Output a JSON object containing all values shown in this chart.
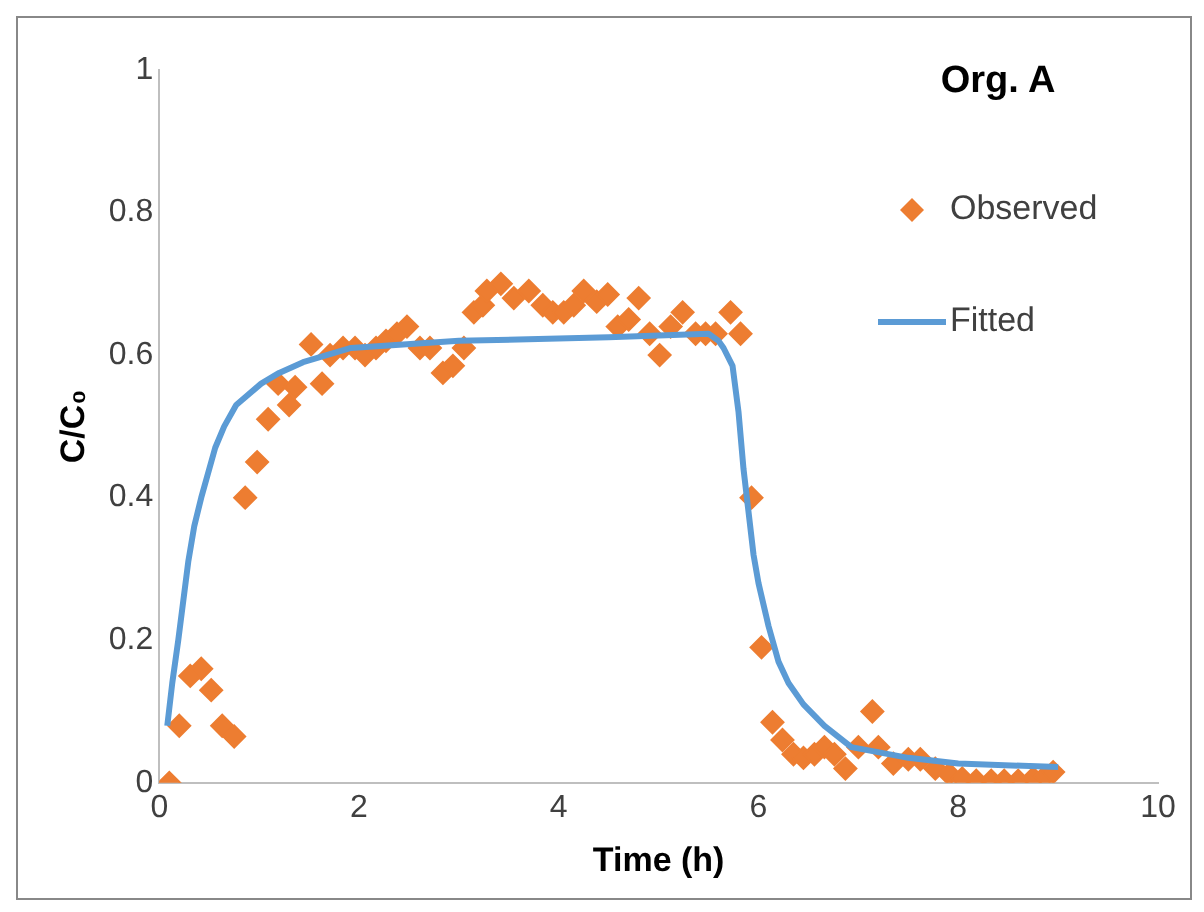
{
  "chart_data": {
    "type": "scatter",
    "title": "Org. A",
    "xlabel": "Time (h)",
    "ylabel": "C/C₀",
    "xlim": [
      0,
      10
    ],
    "xticks": [
      0,
      2,
      4,
      6,
      8,
      10
    ],
    "ylim": [
      0,
      1
    ],
    "yticks": [
      0,
      0.2,
      0.4,
      0.6,
      0.8,
      1
    ],
    "grid": false,
    "legend": "top right",
    "series": [
      {
        "name": "Observed",
        "marker": "diamond",
        "color": "#ed7d31",
        "x": [
          0.1,
          0.2,
          0.31,
          0.42,
          0.52,
          0.63,
          0.75,
          0.86,
          0.98,
          1.09,
          1.19,
          1.3,
          1.36,
          1.52,
          1.63,
          1.71,
          1.84,
          1.96,
          2.06,
          2.17,
          2.27,
          2.38,
          2.48,
          2.61,
          2.71,
          2.84,
          2.94,
          3.05,
          3.15,
          3.24,
          3.28,
          3.42,
          3.55,
          3.7,
          3.84,
          3.94,
          4.05,
          4.15,
          4.25,
          4.38,
          4.49,
          4.59,
          4.7,
          4.8,
          4.91,
          5.01,
          5.12,
          5.24,
          5.37,
          5.47,
          5.57,
          5.72,
          5.82,
          5.93,
          6.03,
          6.14,
          6.24,
          6.35,
          6.45,
          6.56,
          6.66,
          6.76,
          6.87,
          7.0,
          7.14,
          7.2,
          7.35,
          7.5,
          7.62,
          7.77,
          7.91,
          8.04,
          8.18,
          8.33,
          8.46,
          8.6,
          8.75,
          8.87,
          8.95
        ],
        "values": [
          0,
          0.08,
          0.15,
          0.16,
          0.13,
          0.08,
          0.065,
          0.4,
          0.45,
          0.51,
          0.56,
          0.53,
          0.555,
          0.615,
          0.56,
          0.6,
          0.61,
          0.61,
          0.6,
          0.61,
          0.62,
          0.63,
          0.64,
          0.61,
          0.61,
          0.575,
          0.585,
          0.61,
          0.66,
          0.67,
          0.69,
          0.7,
          0.68,
          0.69,
          0.67,
          0.66,
          0.66,
          0.67,
          0.69,
          0.675,
          0.685,
          0.64,
          0.65,
          0.68,
          0.63,
          0.6,
          0.64,
          0.66,
          0.63,
          0.63,
          0.63,
          0.66,
          0.63,
          0.4,
          0.19,
          0.085,
          0.06,
          0.04,
          0.035,
          0.04,
          0.05,
          0.04,
          0.02,
          0.05,
          0.1,
          0.05,
          0.027,
          0.033,
          0.033,
          0.02,
          0.012,
          0.006,
          0.003,
          0.003,
          0.003,
          0.003,
          0.006,
          0.009,
          0.015
        ]
      },
      {
        "name": "Fitted",
        "type": "line",
        "marker": "none",
        "color": "#5b9bd5",
        "x": [
          0.08,
          0.13,
          0.19,
          0.29,
          0.35,
          0.42,
          0.56,
          0.65,
          0.77,
          1.02,
          1.2,
          1.44,
          1.92,
          3,
          4.5,
          5.5,
          5.6,
          5.65,
          5.74,
          5.8,
          5.85,
          5.95,
          6.0,
          6.1,
          6.2,
          6.3,
          6.45,
          6.66,
          6.93,
          7.5,
          8,
          9
        ],
        "values": [
          0.08,
          0.14,
          0.2,
          0.31,
          0.36,
          0.4,
          0.47,
          0.5,
          0.53,
          0.56,
          0.575,
          0.59,
          0.61,
          0.62,
          0.625,
          0.63,
          0.62,
          0.61,
          0.585,
          0.52,
          0.44,
          0.32,
          0.28,
          0.22,
          0.17,
          0.14,
          0.11,
          0.08,
          0.05,
          0.035,
          0.027,
          0.022
        ]
      }
    ]
  }
}
